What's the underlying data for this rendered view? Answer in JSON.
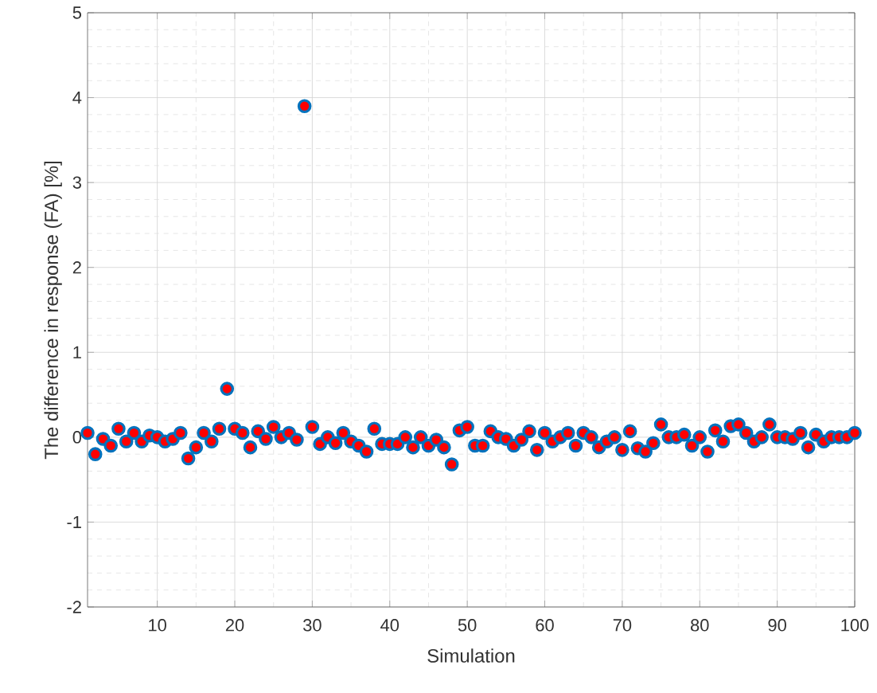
{
  "chart_data": {
    "type": "scatter",
    "xlabel": "Simulation",
    "ylabel": "The difference in response (FA) [%]",
    "x": [
      1,
      2,
      3,
      4,
      5,
      6,
      7,
      8,
      9,
      10,
      11,
      12,
      13,
      14,
      15,
      16,
      17,
      18,
      19,
      20,
      21,
      22,
      23,
      24,
      25,
      26,
      27,
      28,
      29,
      30,
      31,
      32,
      33,
      34,
      35,
      36,
      37,
      38,
      39,
      40,
      41,
      42,
      43,
      44,
      45,
      46,
      47,
      48,
      49,
      50,
      51,
      52,
      53,
      54,
      55,
      56,
      57,
      58,
      59,
      60,
      61,
      62,
      63,
      64,
      65,
      66,
      67,
      68,
      69,
      70,
      71,
      72,
      73,
      74,
      75,
      76,
      77,
      78,
      79,
      80,
      81,
      82,
      83,
      84,
      85,
      86,
      87,
      88,
      89,
      90,
      91,
      92,
      93,
      94,
      95,
      96,
      97,
      98,
      99,
      100
    ],
    "series": [
      {
        "color": "#ff0000",
        "values": [
          0.05,
          -0.2,
          -0.02,
          -0.1,
          0.1,
          -0.05,
          0.05,
          -0.05,
          0.02,
          0.0,
          -0.05,
          -0.02,
          0.05,
          -0.25,
          -0.12,
          0.05,
          -0.05,
          0.1,
          0.57,
          0.1,
          0.05,
          -0.12,
          0.07,
          -0.02,
          0.12,
          0.0,
          0.05,
          -0.03,
          3.9,
          0.12,
          -0.08,
          0.0,
          -0.07,
          0.05,
          -0.05,
          -0.1,
          -0.17,
          0.1,
          -0.08,
          -0.08,
          -0.08,
          0.0,
          -0.12,
          0.0,
          -0.1,
          -0.03,
          -0.12,
          -0.32,
          0.08,
          0.12,
          -0.1,
          -0.1,
          0.07,
          0.0,
          -0.02,
          -0.1,
          -0.03,
          0.07,
          -0.15,
          0.05,
          -0.05,
          0.0,
          0.05,
          -0.1,
          0.05,
          0.0,
          -0.12,
          -0.05,
          0.0,
          -0.15,
          0.07,
          -0.13,
          -0.17,
          -0.07,
          0.15,
          0.0,
          0.0,
          0.03,
          -0.1,
          0.0,
          -0.17,
          0.08,
          -0.05,
          0.13,
          0.15,
          0.05,
          -0.05,
          0.0,
          0.15,
          0.0,
          0.0,
          -0.02,
          0.05,
          -0.12,
          0.03,
          -0.05,
          0.0,
          0.0,
          0.0,
          0.05
        ]
      }
    ],
    "grid": true,
    "xlim": [
      1,
      100
    ],
    "xticks": [
      10,
      20,
      30,
      40,
      50,
      60,
      70,
      80,
      90,
      100
    ],
    "ylim": [
      -2,
      5
    ],
    "yticks": [
      -2,
      -1,
      0,
      1,
      2,
      3,
      4,
      5
    ]
  }
}
